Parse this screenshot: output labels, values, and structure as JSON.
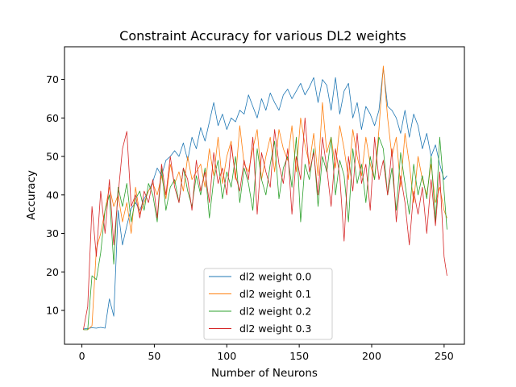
{
  "chart_data": {
    "type": "line",
    "title": "Constraint Accuracy for various DL2 weights",
    "xlabel": "Number of Neurons",
    "ylabel": "Accuracy",
    "xlim": [
      -12,
      264
    ],
    "ylim": [
      1.2,
      78.5
    ],
    "xticks": [
      0,
      50,
      100,
      150,
      200,
      250
    ],
    "yticks": [
      10,
      20,
      30,
      40,
      50,
      60,
      70
    ],
    "grid": false,
    "legend_position": "lower center",
    "x": [
      1,
      4,
      7,
      10,
      13,
      16,
      19,
      22,
      25,
      28,
      31,
      34,
      37,
      40,
      43,
      46,
      49,
      52,
      55,
      58,
      61,
      64,
      67,
      70,
      73,
      76,
      79,
      82,
      85,
      88,
      91,
      94,
      97,
      100,
      103,
      106,
      109,
      112,
      115,
      118,
      121,
      124,
      127,
      130,
      133,
      136,
      139,
      142,
      145,
      148,
      151,
      154,
      157,
      160,
      163,
      166,
      169,
      172,
      175,
      178,
      181,
      184,
      187,
      190,
      193,
      196,
      199,
      202,
      205,
      208,
      211,
      214,
      217,
      220,
      223,
      226,
      229,
      232,
      235,
      238,
      241,
      244,
      247,
      250,
      252
    ],
    "series": [
      {
        "name": "dl2 weight 0.0",
        "color": "#1f77b4",
        "values": [
          5.2,
          5.3,
          5.5,
          5.4,
          5.6,
          5.4,
          13.0,
          8.5,
          36.0,
          27.0,
          32.0,
          36.5,
          38.0,
          36.0,
          39.0,
          41.0,
          43.5,
          47.0,
          45.0,
          49.0,
          50.0,
          51.5,
          50.0,
          53.5,
          49.0,
          55.0,
          52.0,
          57.5,
          54.0,
          59.0,
          64.0,
          58.0,
          61.0,
          57.0,
          60.0,
          59.0,
          62.0,
          61.0,
          66.0,
          63.0,
          60.0,
          65.0,
          62.0,
          66.5,
          64.0,
          62.0,
          66.0,
          67.5,
          65.0,
          67.0,
          69.0,
          66.0,
          68.0,
          70.5,
          64.0,
          70.0,
          68.5,
          62.0,
          70.5,
          61.0,
          67.0,
          69.0,
          60.0,
          64.0,
          57.0,
          63.0,
          61.0,
          58.0,
          62.0,
          73.0,
          63.0,
          62.0,
          60.0,
          56.0,
          62.0,
          55.0,
          61.0,
          58.0,
          52.0,
          56.0,
          50.0,
          53.0,
          48.0,
          44.0,
          45.0
        ]
      },
      {
        "name": "dl2 weight 0.1",
        "color": "#ff7f0e",
        "values": [
          5.0,
          5.0,
          6.0,
          26.0,
          30.0,
          36.0,
          42.0,
          37.0,
          40.0,
          33.0,
          38.0,
          30.0,
          42.0,
          35.0,
          38.0,
          41.0,
          43.0,
          40.0,
          45.0,
          39.0,
          48.0,
          43.0,
          46.0,
          41.0,
          50.0,
          44.0,
          46.0,
          48.0,
          42.0,
          52.0,
          45.0,
          55.0,
          43.0,
          50.0,
          54.0,
          44.0,
          58.0,
          48.0,
          46.0,
          52.0,
          57.0,
          44.0,
          50.0,
          55.0,
          46.0,
          57.0,
          52.0,
          49.0,
          58.0,
          46.0,
          60.0,
          53.0,
          48.0,
          56.0,
          45.0,
          64.0,
          51.0,
          55.0,
          47.0,
          58.0,
          52.0,
          44.0,
          57.0,
          50.0,
          45.0,
          55.0,
          48.0,
          44.0,
          57.0,
          73.5,
          60.0,
          50.0,
          55.0,
          42.0,
          56.0,
          48.0,
          38.0,
          50.0,
          44.0,
          40.0,
          48.0,
          38.0,
          42.0,
          36.0,
          34.0
        ]
      },
      {
        "name": "dl2 weight 0.2",
        "color": "#2ca02c",
        "values": [
          5.0,
          5.0,
          19.0,
          18.0,
          25.0,
          36.0,
          40.0,
          22.0,
          42.0,
          37.0,
          43.0,
          33.0,
          39.0,
          41.0,
          36.0,
          43.0,
          40.0,
          33.0,
          47.0,
          36.0,
          42.0,
          44.0,
          38.0,
          47.0,
          41.0,
          37.0,
          45.0,
          40.0,
          47.0,
          34.0,
          44.0,
          49.0,
          39.0,
          46.0,
          42.0,
          50.0,
          38.0,
          47.0,
          43.0,
          36.0,
          52.0,
          44.0,
          40.0,
          48.0,
          54.0,
          39.0,
          47.0,
          50.0,
          42.0,
          55.0,
          33.0,
          48.0,
          44.0,
          52.0,
          37.0,
          50.0,
          46.0,
          55.0,
          40.0,
          49.0,
          45.0,
          33.0,
          52.0,
          43.0,
          48.0,
          38.0,
          50.0,
          44.0,
          55.0,
          52.0,
          40.0,
          47.0,
          36.0,
          51.0,
          43.0,
          35.0,
          48.0,
          40.0,
          45.0,
          39.0,
          50.0,
          33.0,
          55.0,
          41.0,
          31.0
        ]
      },
      {
        "name": "dl2 weight 0.3",
        "color": "#d62728",
        "values": [
          5.0,
          11.0,
          37.0,
          24.0,
          41.0,
          30.0,
          44.0,
          27.0,
          40.0,
          52.0,
          56.5,
          37.0,
          40.0,
          34.0,
          41.0,
          38.0,
          44.0,
          34.0,
          48.0,
          40.0,
          50.0,
          42.0,
          38.0,
          47.0,
          44.0,
          36.0,
          49.0,
          41.0,
          46.0,
          38.0,
          51.0,
          43.0,
          47.0,
          40.0,
          53.0,
          45.0,
          41.0,
          49.0,
          44.0,
          55.0,
          35.0,
          51.0,
          46.0,
          42.0,
          57.0,
          48.0,
          43.0,
          52.0,
          35.0,
          50.0,
          44.0,
          60.0,
          46.0,
          51.0,
          40.0,
          55.0,
          47.0,
          37.0,
          52.0,
          45.0,
          28.0,
          50.0,
          41.0,
          56.0,
          43.0,
          48.0,
          36.0,
          55.0,
          44.0,
          49.0,
          40.0,
          52.0,
          33.0,
          45.0,
          38.0,
          27.0,
          41.0,
          35.0,
          42.0,
          30.0,
          44.0,
          32.0,
          46.0,
          24.0,
          19.0
        ]
      }
    ]
  }
}
